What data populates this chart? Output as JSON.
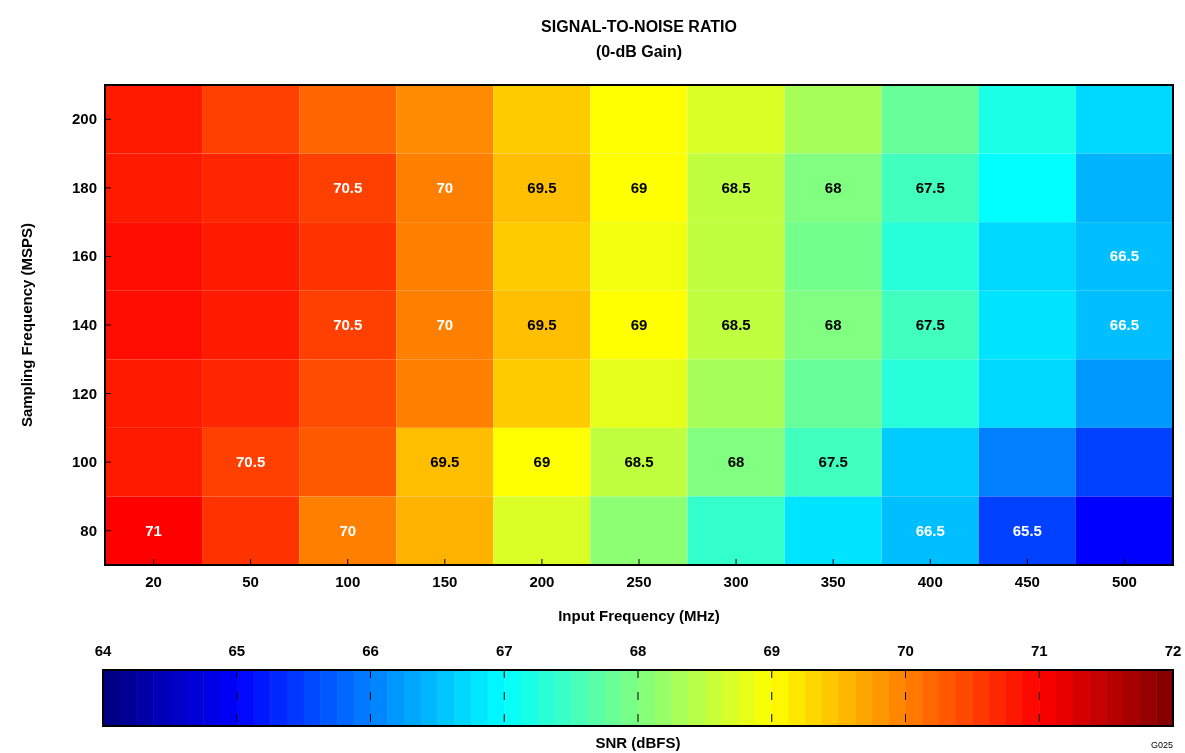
{
  "chart_data": {
    "type": "heatmap",
    "title": "SIGNAL-TO-NOISE RATIO",
    "subtitle": "(0-dB Gain)",
    "xlabel": "Input Frequency (MHz)",
    "ylabel": "Sampling Frequency (MSPS)",
    "clabel": "SNR (dBFS)",
    "categories": [
      "20",
      "50",
      "100",
      "150",
      "200",
      "250",
      "300",
      "350",
      "400",
      "450",
      "500"
    ],
    "y_categories": [
      "200",
      "180",
      "160",
      "140",
      "120",
      "100",
      "80"
    ],
    "cells": [
      [
        70.8,
        70.5,
        70.2,
        69.9,
        69.4,
        69.0,
        68.7,
        68.3,
        67.8,
        67.2,
        66.7
      ],
      [
        70.8,
        70.7,
        70.5,
        70.0,
        69.5,
        69.0,
        68.5,
        68.0,
        67.5,
        67.0,
        66.4
      ],
      [
        70.9,
        70.8,
        70.6,
        70.0,
        69.4,
        68.9,
        68.5,
        67.9,
        67.3,
        66.7,
        66.5
      ],
      [
        70.9,
        70.8,
        70.5,
        70.0,
        69.5,
        69.0,
        68.5,
        68.0,
        67.5,
        66.8,
        66.5
      ],
      [
        70.8,
        70.7,
        70.4,
        70.0,
        69.4,
        68.8,
        68.3,
        67.8,
        67.3,
        66.7,
        66.2
      ],
      [
        70.8,
        70.5,
        70.3,
        69.5,
        69.0,
        68.5,
        68.0,
        67.5,
        66.6,
        66.0,
        65.5
      ],
      [
        71.0,
        70.6,
        70.0,
        69.6,
        68.7,
        68.1,
        67.4,
        66.8,
        66.5,
        65.5,
        65.0
      ]
    ],
    "cell_labels": [
      [
        null,
        null,
        null,
        null,
        null,
        null,
        null,
        null,
        null,
        null,
        null
      ],
      [
        null,
        null,
        "70.5",
        "70",
        "69.5",
        "69",
        "68.5",
        "68",
        "67.5",
        null,
        null
      ],
      [
        null,
        null,
        null,
        null,
        null,
        null,
        null,
        null,
        null,
        null,
        "66.5"
      ],
      [
        null,
        null,
        "70.5",
        "70",
        "69.5",
        "69",
        "68.5",
        "68",
        "67.5",
        null,
        "66.5"
      ],
      [
        null,
        null,
        null,
        null,
        null,
        null,
        null,
        null,
        null,
        null,
        null
      ],
      [
        null,
        "70.5",
        null,
        "69.5",
        "69",
        "68.5",
        "68",
        "67.5",
        null,
        null,
        null
      ],
      [
        "71",
        null,
        "70",
        null,
        null,
        null,
        null,
        null,
        "66.5",
        "65.5",
        null
      ]
    ],
    "clim": [
      64,
      72
    ],
    "cticks": [
      64,
      65,
      66,
      67,
      68,
      69,
      70,
      71,
      72
    ],
    "annotations": [
      "G025"
    ]
  }
}
